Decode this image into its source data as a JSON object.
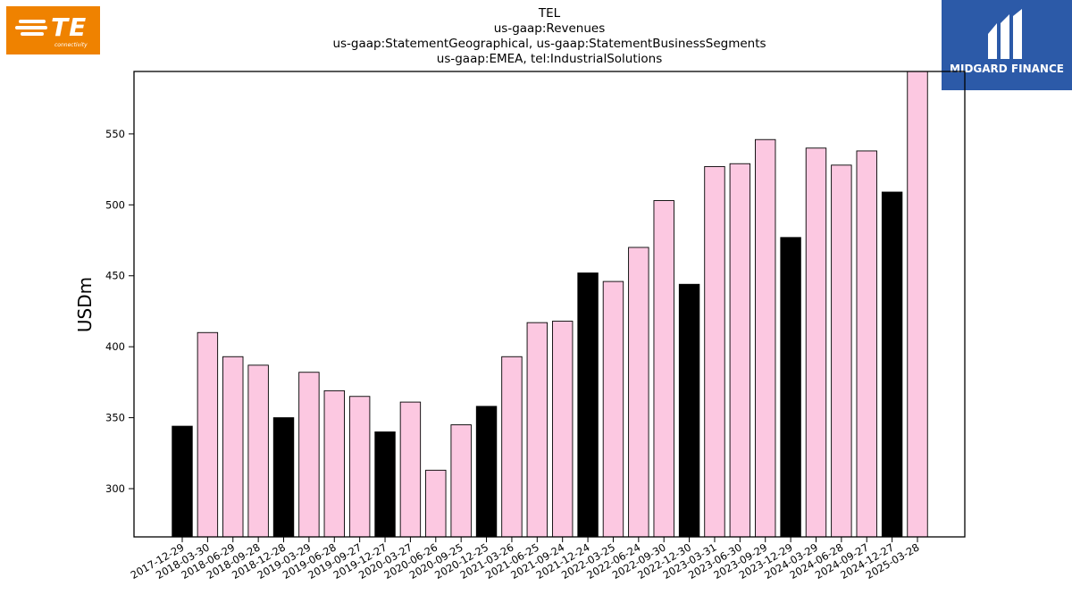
{
  "logos": {
    "left": {
      "text": "TE",
      "subtext": "connectivity"
    },
    "right": {
      "text": "MIDGARD FINANCE"
    }
  },
  "colors": {
    "bar_pink": "#fcc8e1",
    "bar_black": "#000000",
    "te_orange": "#ef8200",
    "midgard_blue": "#2c5aa8"
  },
  "chart_data": {
    "type": "bar",
    "title_lines": [
      "TEL",
      "us-gaap:Revenues",
      "us-gaap:StatementGeographical, us-gaap:StatementBusinessSegments",
      "us-gaap:EMEA, tel:IndustrialSolutions"
    ],
    "xlabel": "",
    "ylabel": "USDm",
    "ylim": [
      266,
      594
    ],
    "yticks": [
      300,
      350,
      400,
      450,
      500,
      550
    ],
    "grid": false,
    "categories": [
      "2017-12-29",
      "2018-03-30",
      "2018-06-29",
      "2018-09-28",
      "2018-12-28",
      "2019-03-29",
      "2019-06-28",
      "2019-09-27",
      "2019-12-27",
      "2020-03-27",
      "2020-06-26",
      "2020-09-25",
      "2020-12-25",
      "2021-03-26",
      "2021-06-25",
      "2021-09-24",
      "2021-12-24",
      "2022-03-25",
      "2022-06-24",
      "2022-09-30",
      "2022-12-30",
      "2023-03-31",
      "2023-06-30",
      "2023-09-29",
      "2023-12-29",
      "2024-03-29",
      "2024-06-28",
      "2024-09-27",
      "2024-12-27",
      "2025-03-28"
    ],
    "values": [
      344,
      410,
      393,
      387,
      350,
      382,
      369,
      365,
      340,
      361,
      313,
      345,
      358,
      393,
      417,
      418,
      452,
      446,
      470,
      503,
      444,
      527,
      529,
      546,
      477,
      540,
      528,
      538,
      509,
      594
    ],
    "bar_colors": [
      "black",
      "pink",
      "pink",
      "pink",
      "black",
      "pink",
      "pink",
      "pink",
      "black",
      "pink",
      "pink",
      "pink",
      "black",
      "pink",
      "pink",
      "pink",
      "black",
      "pink",
      "pink",
      "pink",
      "black",
      "pink",
      "pink",
      "pink",
      "black",
      "pink",
      "pink",
      "pink",
      "black",
      "pink"
    ]
  }
}
